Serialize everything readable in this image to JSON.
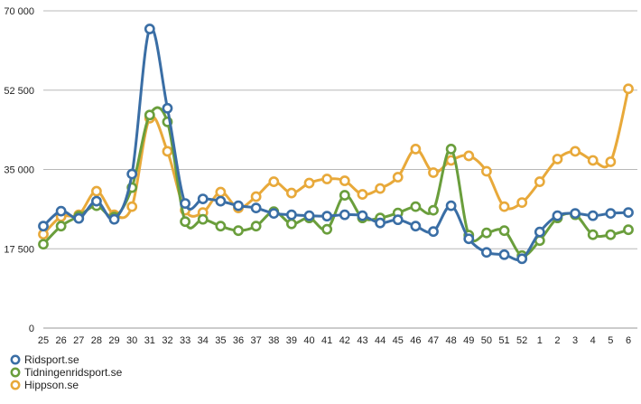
{
  "chart_data": {
    "type": "line",
    "categories": [
      "25",
      "26",
      "27",
      "28",
      "29",
      "30",
      "31",
      "32",
      "33",
      "34",
      "35",
      "36",
      "37",
      "38",
      "39",
      "40",
      "41",
      "42",
      "43",
      "44",
      "45",
      "46",
      "47",
      "48",
      "49",
      "50",
      "51",
      "52",
      "1",
      "2",
      "3",
      "4",
      "5",
      "6"
    ],
    "y_ticks": [
      0,
      17500,
      35000,
      52500,
      70000
    ],
    "y_tick_labels": [
      "0",
      "17 500",
      "35 000",
      "52 500",
      "70 000"
    ],
    "ylim": [
      0,
      70000
    ],
    "grid": "horizontal",
    "legend_position": "bottom-left",
    "series": [
      {
        "name": "Ridsport.se",
        "color": "#3a6ea5",
        "values": [
          22500,
          25800,
          24200,
          28000,
          24000,
          34000,
          66000,
          48500,
          27500,
          28500,
          28000,
          27000,
          26500,
          25300,
          25000,
          24800,
          24700,
          25000,
          24800,
          23200,
          23900,
          22500,
          21300,
          27000,
          19700,
          16700,
          16200,
          15300,
          21200,
          24800,
          25300,
          24800,
          25300,
          25500
        ]
      },
      {
        "name": "Tidningenridsport.se",
        "color": "#6a9e3c",
        "values": [
          18500,
          22500,
          24700,
          27000,
          24500,
          31000,
          47000,
          45500,
          23500,
          24000,
          22500,
          21500,
          22500,
          25700,
          23000,
          24300,
          21800,
          29300,
          24300,
          24300,
          25400,
          26800,
          26000,
          39500,
          20500,
          21000,
          21500,
          16000,
          19300,
          24300,
          25000,
          20600,
          20600,
          21700
        ]
      },
      {
        "name": "Hippson.se",
        "color": "#e8a93a",
        "values": [
          20700,
          24600,
          25000,
          30200,
          25000,
          26800,
          46300,
          39000,
          26000,
          25500,
          30000,
          26500,
          29000,
          32300,
          29800,
          32000,
          32900,
          32500,
          29500,
          30800,
          33300,
          39500,
          34300,
          37000,
          38000,
          34600,
          26800,
          27700,
          32300,
          37300,
          39000,
          37000,
          36700,
          52800
        ]
      }
    ]
  }
}
